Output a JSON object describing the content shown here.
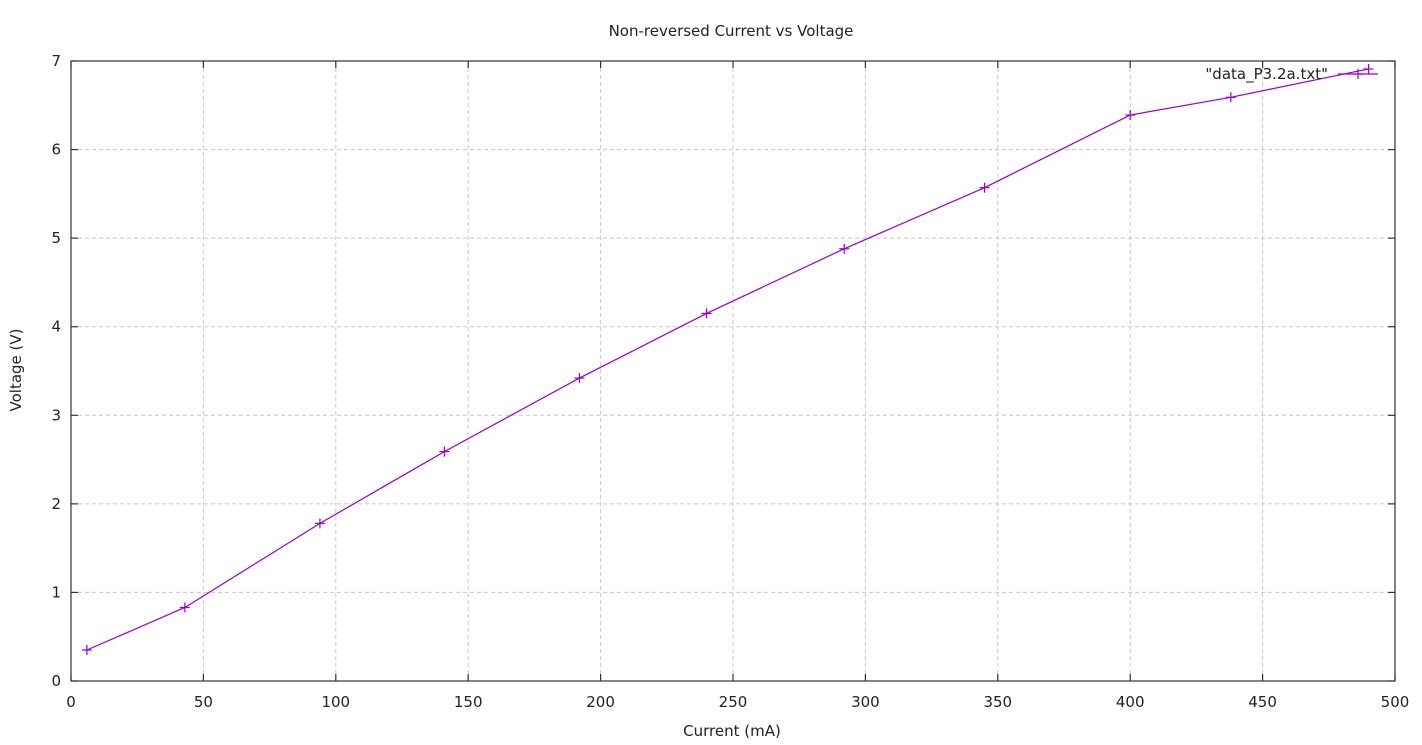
{
  "chart_data": {
    "type": "line",
    "title": "Non-reversed Current vs Voltage",
    "xlabel": "Current (mA)",
    "ylabel": "Voltage (V)",
    "xlim": [
      0,
      500
    ],
    "ylim": [
      0,
      7
    ],
    "xticks": [
      0,
      50,
      100,
      150,
      200,
      250,
      300,
      350,
      400,
      450,
      500
    ],
    "yticks": [
      0,
      1,
      2,
      3,
      4,
      5,
      6,
      7
    ],
    "grid": true,
    "legend_position": "top-right",
    "series": [
      {
        "name": "\"data_P3.2a.txt\"",
        "color": "#9400d3",
        "marker": "plus",
        "x": [
          6,
          43,
          94,
          141,
          192,
          240,
          292,
          345,
          400,
          438,
          490
        ],
        "y": [
          0.35,
          0.83,
          1.78,
          2.59,
          3.42,
          4.15,
          4.88,
          5.57,
          6.39,
          6.59,
          6.91
        ]
      }
    ]
  }
}
